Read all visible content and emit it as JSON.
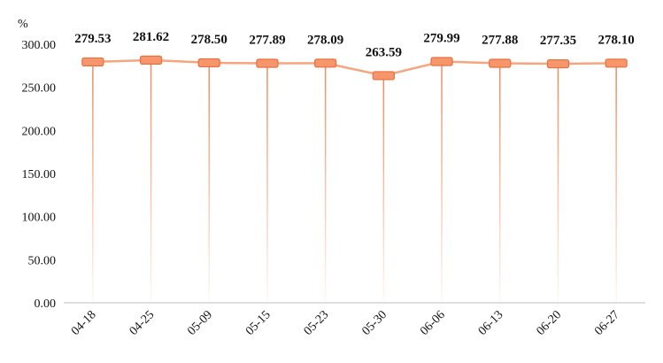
{
  "chart_data": {
    "type": "line",
    "unit": "%",
    "categories": [
      "04-18",
      "04-25",
      "05-09",
      "05-15",
      "05-23",
      "05-30",
      "06-06",
      "06-13",
      "06-20",
      "06-27"
    ],
    "values": [
      279.53,
      281.62,
      278.5,
      277.89,
      278.09,
      263.59,
      279.99,
      277.88,
      277.35,
      278.1
    ],
    "value_labels": [
      "279.53",
      "281.62",
      "278.50",
      "277.89",
      "278.09",
      "263.59",
      "279.99",
      "277.88",
      "277.35",
      "278.10"
    ],
    "y_ticks": [
      "0.00",
      "50.00",
      "100.00",
      "150.00",
      "200.00",
      "250.00",
      "300.00"
    ],
    "ylim": [
      0,
      300
    ],
    "grid": false,
    "legend": "none",
    "colors": {
      "line": "#f4a67e",
      "marker_fill": "#f7956b",
      "marker_stroke": "#e8703f",
      "drop_line": "#ee8a5e",
      "axis": "#bfbfbf"
    }
  }
}
